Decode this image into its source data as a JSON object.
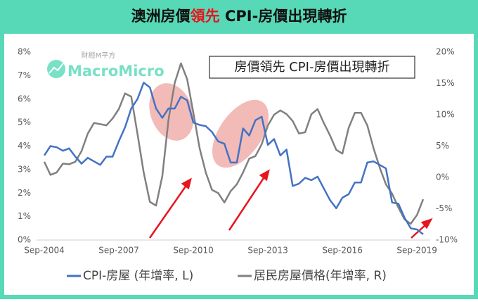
{
  "chart_data": {
    "type": "line",
    "title": [
      "澳洲房價",
      "領先",
      " CPI-房價出現轉折"
    ],
    "title_highlight_color": "#e8141e",
    "annotation": "房價領先 CPI-房價出現轉折",
    "logo": {
      "cn": "財經M平方",
      "en": "MacroMicro"
    },
    "categories": [
      "Sep-2004",
      null,
      null,
      null,
      null,
      null,
      null,
      null,
      null,
      null,
      null,
      null,
      "Sep-2007",
      null,
      null,
      null,
      null,
      null,
      null,
      null,
      null,
      null,
      null,
      null,
      "Sep-2010",
      null,
      null,
      null,
      null,
      null,
      null,
      null,
      null,
      null,
      null,
      null,
      "Sep-2013",
      null,
      null,
      null,
      null,
      null,
      null,
      null,
      null,
      null,
      null,
      null,
      "Sep-2016",
      null,
      null,
      null,
      null,
      null,
      null,
      null,
      null,
      null,
      null,
      null,
      "Sep-2019",
      null
    ],
    "series": [
      {
        "name": "CPI-房屋 (年增率, L)",
        "color": "#4472c4",
        "values": [
          3.6,
          4.0,
          3.95,
          3.8,
          3.9,
          3.55,
          3.25,
          3.5,
          3.35,
          3.2,
          3.55,
          3.55,
          4.2,
          4.8,
          5.6,
          6.0,
          6.7,
          6.5,
          5.6,
          5.2,
          5.6,
          5.6,
          6.1,
          5.95,
          5.0,
          4.9,
          4.85,
          4.6,
          4.2,
          4.1,
          3.3,
          3.3,
          4.75,
          4.45,
          5.1,
          5.25,
          4.05,
          4.3,
          3.6,
          3.85,
          2.3,
          2.4,
          2.65,
          2.55,
          2.7,
          2.2,
          1.7,
          1.35,
          1.8,
          1.95,
          2.45,
          2.45,
          3.3,
          3.35,
          3.2,
          3.05,
          1.6,
          1.55,
          0.95,
          0.5,
          0.45,
          0.25
        ]
      },
      {
        "name": "居民房屋價格(年增率, R)",
        "color": "#808080",
        "axis": "y2",
        "values": [
          2.5,
          0.4,
          0.8,
          2.2,
          2.1,
          2.5,
          4.2,
          7.0,
          8.7,
          8.5,
          8.3,
          9.4,
          10.9,
          13.4,
          12.9,
          7.0,
          0.8,
          -3.9,
          -4.5,
          0.2,
          9.2,
          15.1,
          18.2,
          15.7,
          10.3,
          4.7,
          0.8,
          -2.0,
          -2.5,
          -4.0,
          -2.2,
          -1.1,
          0.8,
          3.0,
          3.4,
          5.3,
          8.3,
          10.0,
          10.7,
          10.1,
          9.0,
          7.0,
          7.2,
          10.1,
          10.9,
          8.7,
          6.7,
          4.4,
          3.8,
          7.9,
          10.3,
          10.3,
          8.3,
          4.7,
          1.6,
          -1.1,
          -2.6,
          -4.8,
          -6.7,
          -7.4,
          -6.0,
          -3.5
        ]
      }
    ],
    "ylim": [
      0,
      8
    ],
    "yticks": [
      {
        "value": 0,
        "label": "0%"
      },
      {
        "value": 1,
        "label": "1%"
      },
      {
        "value": 2,
        "label": "2%"
      },
      {
        "value": 3,
        "label": "3%"
      },
      {
        "value": 4,
        "label": "4%"
      },
      {
        "value": 5,
        "label": "5%"
      },
      {
        "value": 6,
        "label": "6%"
      },
      {
        "value": 7,
        "label": "7%"
      },
      {
        "value": 8,
        "label": "8%"
      }
    ],
    "y2lim": [
      -10,
      20
    ],
    "y2ticks": [
      {
        "value": -10,
        "label": "-10%"
      },
      {
        "value": -5,
        "label": "-5%"
      },
      {
        "value": 0,
        "label": "0%"
      },
      {
        "value": 5,
        "label": "5%"
      },
      {
        "value": 10,
        "label": "10%"
      },
      {
        "value": 15,
        "label": "15%"
      },
      {
        "value": 20,
        "label": "20%"
      }
    ]
  }
}
